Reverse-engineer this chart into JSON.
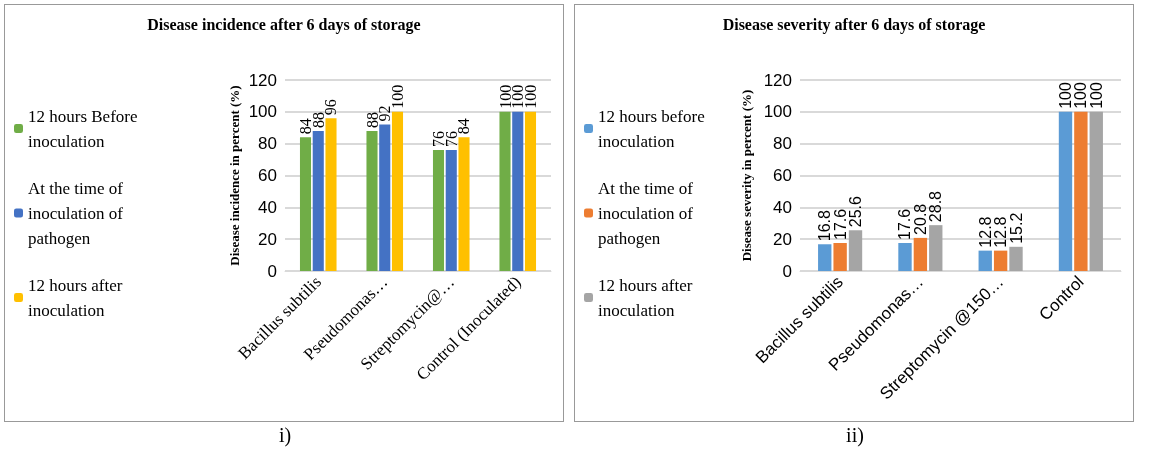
{
  "chart_data": [
    {
      "type": "bar",
      "title": "Disease incidence after 6 days of storage",
      "ylabel": "Disease incidence in percent (%)",
      "categories": [
        "Bacillus subtilis",
        "Pseudomonas…",
        "Streptomycin@…",
        "Control (Inoculated)"
      ],
      "series": [
        {
          "name": "12 hours Before inoculation",
          "color": "#70ad47",
          "values": [
            84,
            88,
            76,
            100
          ]
        },
        {
          "name": "At the time of inoculation of pathogen",
          "color": "#4472c4",
          "values": [
            88,
            92,
            76,
            100
          ]
        },
        {
          "name": "12 hours after inoculation",
          "color": "#ffc000",
          "values": [
            96,
            100,
            84,
            100
          ]
        }
      ],
      "ylim": [
        0,
        120
      ],
      "yticks": [
        0,
        20,
        40,
        60,
        80,
        100,
        120
      ],
      "grid": "y",
      "legend": "left",
      "data_labels": true,
      "annotations": [
        "i)"
      ]
    },
    {
      "type": "bar",
      "title": "Disease severity after 6 days of storage",
      "ylabel": "Disease severity in percent (%)",
      "categories": [
        "Bacillus subtilis",
        "Pseudomonas…",
        "Streptomycin @150…",
        "Control"
      ],
      "series": [
        {
          "name": "12 hours before inoculation",
          "color": "#5b9bd5",
          "values": [
            16.8,
            17.6,
            12.8,
            100
          ]
        },
        {
          "name": "At the time of inoculation of pathogen",
          "color": "#ed7d31",
          "values": [
            17.6,
            20.8,
            12.8,
            100
          ]
        },
        {
          "name": "12 hours after inoculation",
          "color": "#a5a5a5",
          "values": [
            25.6,
            28.8,
            15.2,
            100
          ]
        }
      ],
      "ylim": [
        0,
        120
      ],
      "yticks": [
        0,
        20,
        40,
        60,
        80,
        100,
        120
      ],
      "grid": "y",
      "legend": "left",
      "data_labels": true,
      "annotations": [
        "ii)"
      ]
    }
  ]
}
